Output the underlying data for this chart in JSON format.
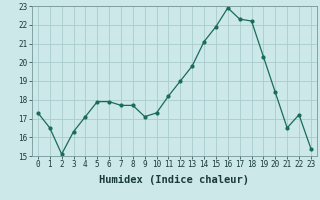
{
  "x": [
    0,
    1,
    2,
    3,
    4,
    5,
    6,
    7,
    8,
    9,
    10,
    11,
    12,
    13,
    14,
    15,
    16,
    17,
    18,
    19,
    20,
    21,
    22,
    23
  ],
  "y": [
    17.3,
    16.5,
    15.1,
    16.3,
    17.1,
    17.9,
    17.9,
    17.7,
    17.7,
    17.1,
    17.3,
    18.2,
    19.0,
    19.8,
    21.1,
    21.9,
    22.9,
    22.3,
    22.2,
    20.3,
    18.4,
    16.5,
    17.2,
    15.4
  ],
  "xlabel": "Humidex (Indice chaleur)",
  "ylim": [
    15,
    23
  ],
  "xlim": [
    -0.5,
    23.5
  ],
  "yticks": [
    15,
    16,
    17,
    18,
    19,
    20,
    21,
    22,
    23
  ],
  "xticks": [
    0,
    1,
    2,
    3,
    4,
    5,
    6,
    7,
    8,
    9,
    10,
    11,
    12,
    13,
    14,
    15,
    16,
    17,
    18,
    19,
    20,
    21,
    22,
    23
  ],
  "line_color": "#1a6b5a",
  "bg_color": "#cce8e8",
  "grid_color": "#aacccc",
  "tick_fontsize": 5.5,
  "xlabel_fontsize": 7.5
}
